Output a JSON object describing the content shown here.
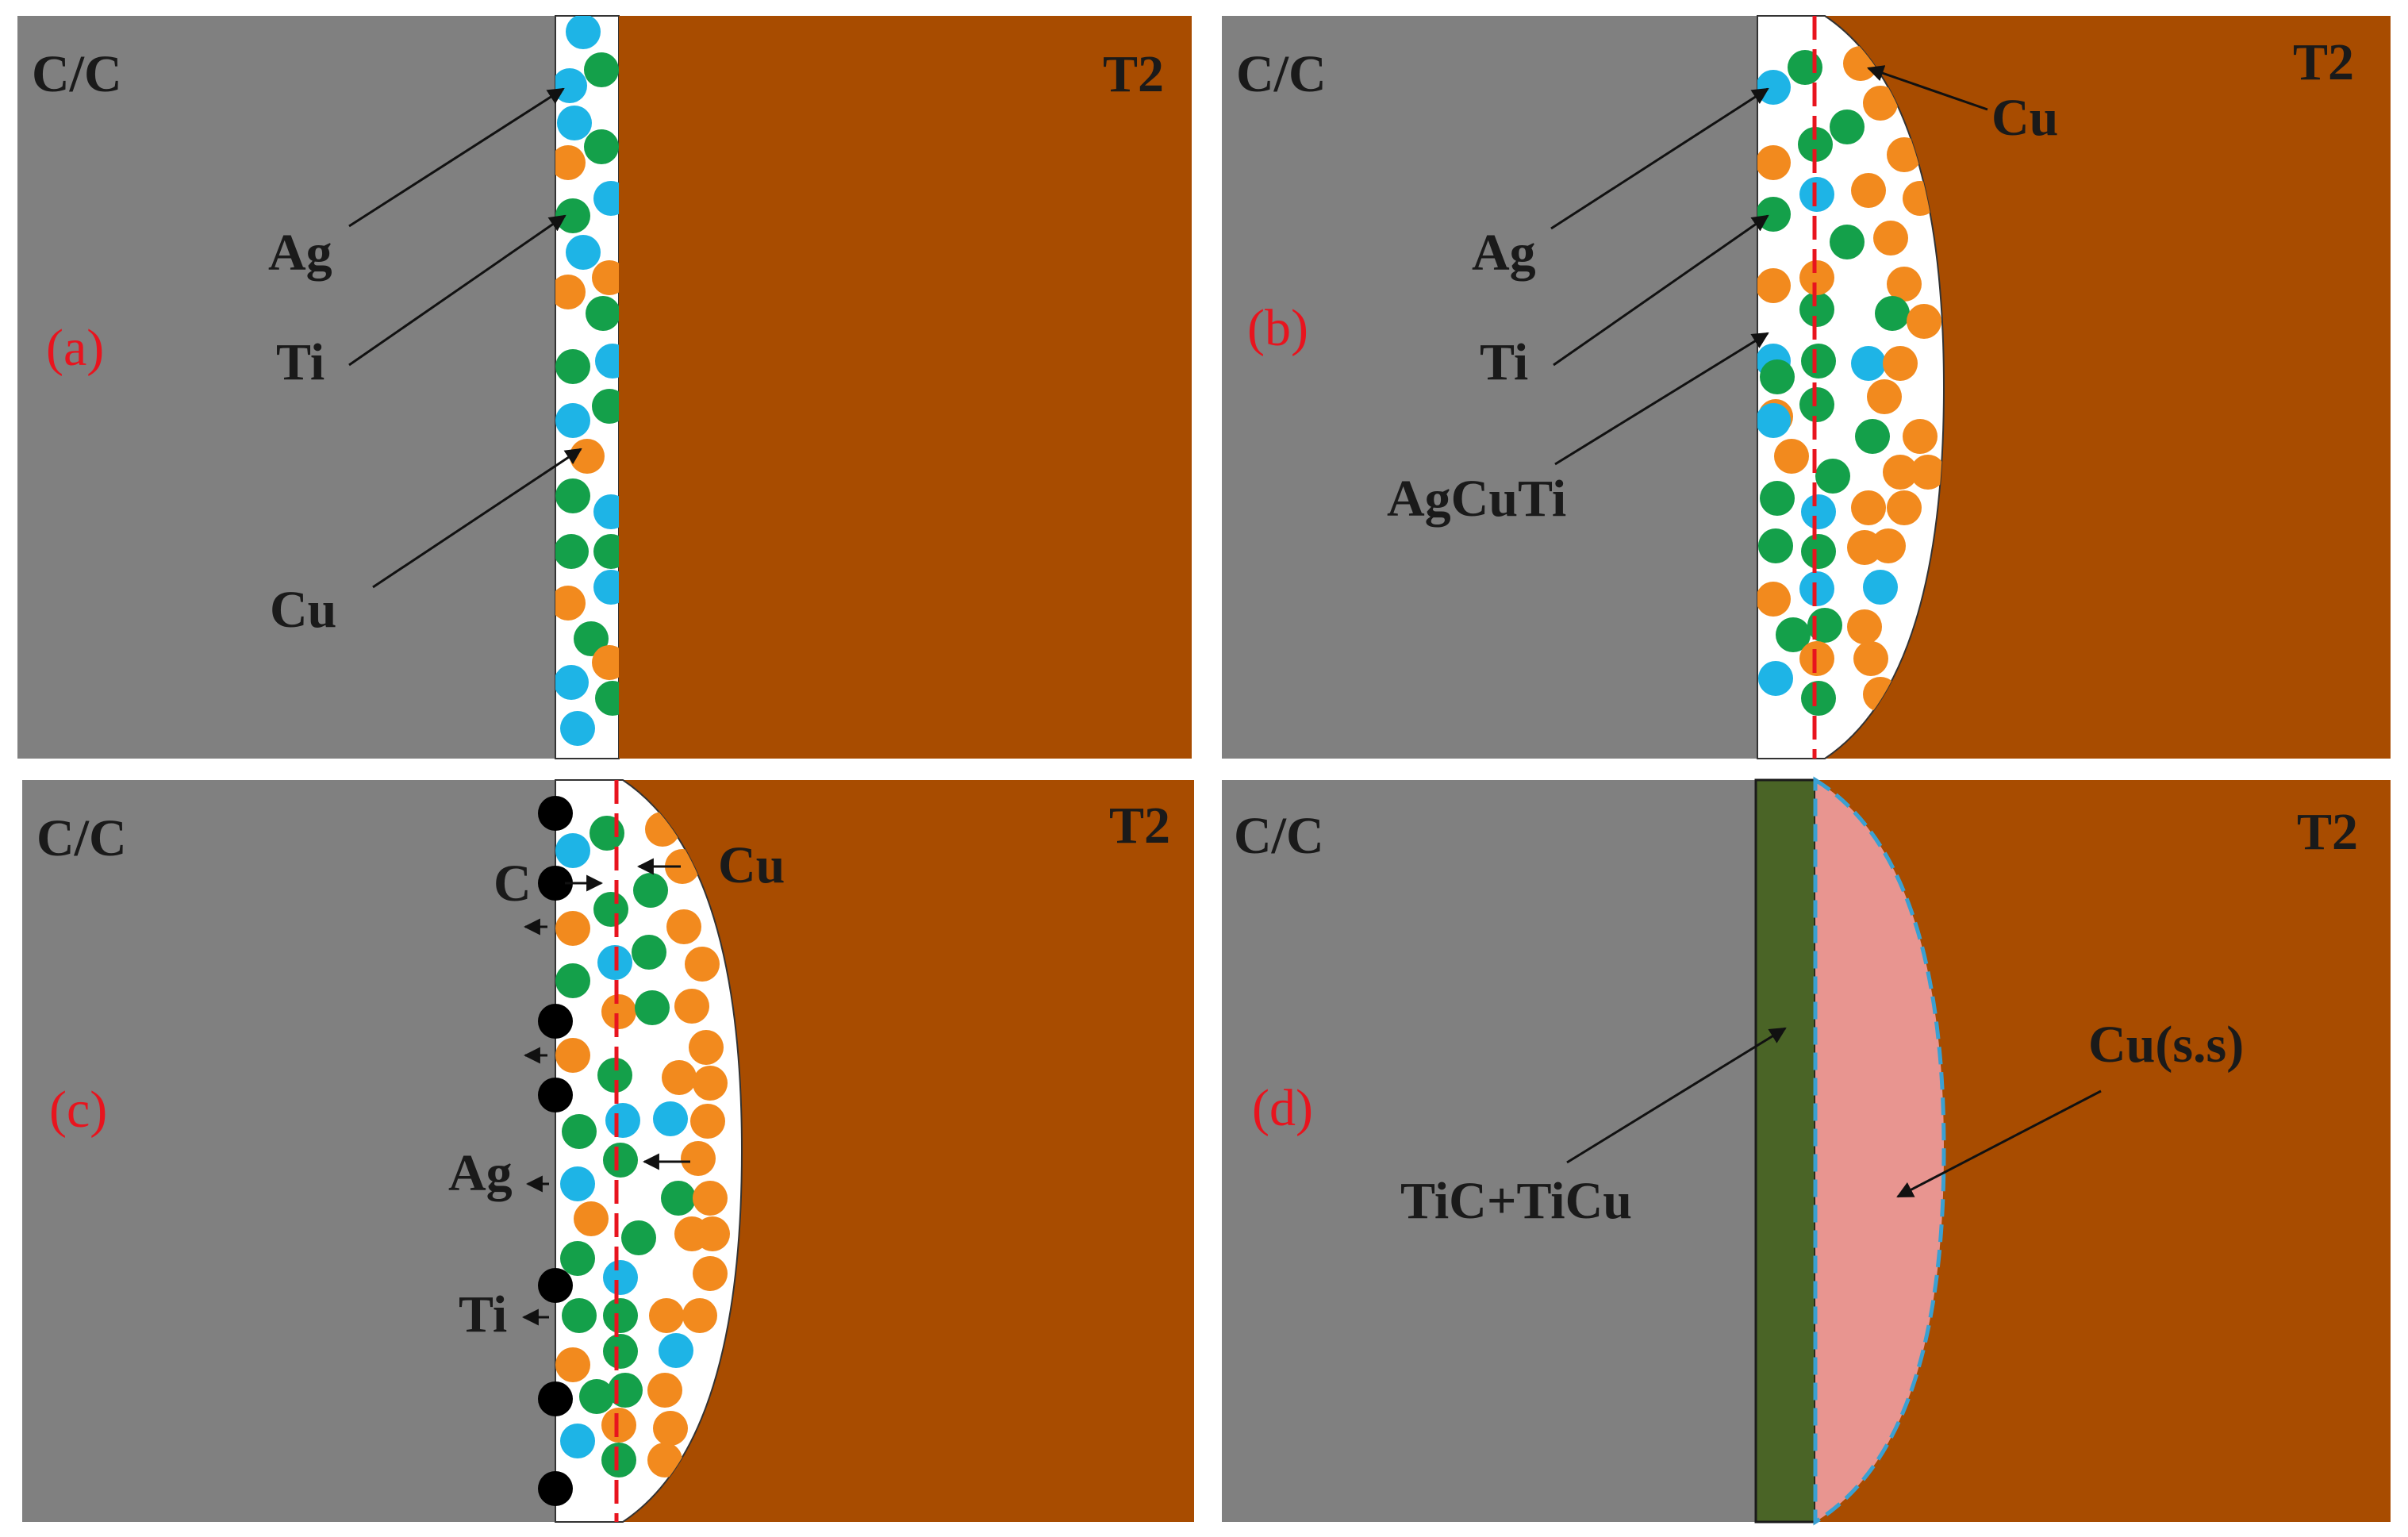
{
  "colors": {
    "cc": "#808080",
    "t2": "#a84c00",
    "filler": "#ffffff",
    "ag": "#1eb4e6",
    "ti": "#14a04a",
    "cu": "#f28a1e",
    "c": "#000000",
    "interface_line": "#e8141e",
    "reaction_layer": "#4a6426",
    "cu_solid_solution": "#e89590",
    "boundary": "#3aa0d2",
    "tag_text": "#e8141e"
  },
  "panels": {
    "a": {
      "tag": "(a)",
      "left_material": "C/C",
      "right_material": "T2",
      "callouts": {
        "ag": "Ag",
        "ti": "Ti",
        "cu": "Cu"
      }
    },
    "b": {
      "tag": "(b)",
      "left_material": "C/C",
      "right_material": "T2",
      "callouts": {
        "cu": "Cu",
        "ag": "Ag",
        "ti": "Ti",
        "alloy": "AgCuTi"
      }
    },
    "c": {
      "tag": "(c)",
      "left_material": "C/C",
      "right_material": "T2",
      "callouts": {
        "cu": "Cu",
        "c": "C",
        "ag": "Ag",
        "ti": "Ti"
      }
    },
    "d": {
      "tag": "(d)",
      "left_material": "C/C",
      "right_material": "T2",
      "callouts": {
        "layer": "TiC+TiCu",
        "solid_solution": "Cu(s.s)"
      }
    }
  }
}
